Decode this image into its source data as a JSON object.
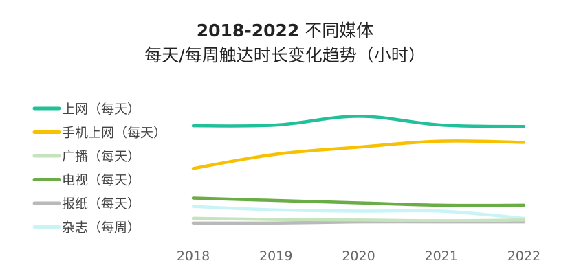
{
  "chart_data": {
    "type": "line",
    "title_bold": "2018-2022",
    "title_rest": " 不同媒体",
    "subtitle": "每天/每周触达时长变化趋势（小时）",
    "categories": [
      "2018",
      "2019",
      "2020",
      "2021",
      "2022"
    ],
    "ylim": [
      0,
      5.5
    ],
    "grid": false,
    "legend_position": "left",
    "series": [
      {
        "name": "上网（每天）",
        "color": "#22c09a",
        "values": [
          4.25,
          4.28,
          4.65,
          4.28,
          4.22
        ]
      },
      {
        "name": "手机上网（每天）",
        "color": "#f7c000",
        "values": [
          2.45,
          3.05,
          3.35,
          3.6,
          3.55
        ]
      },
      {
        "name": "广播（每天）",
        "color": "#c5e3bc",
        "values": [
          0.35,
          0.3,
          0.28,
          0.25,
          0.28
        ]
      },
      {
        "name": "电视（每天）",
        "color": "#6aac45",
        "values": [
          1.2,
          1.1,
          1.0,
          0.9,
          0.9
        ]
      },
      {
        "name": "报纸（每天）",
        "color": "#b9b9b9",
        "values": [
          0.15,
          0.15,
          0.2,
          0.2,
          0.2
        ]
      },
      {
        "name": "杂志（每周）",
        "color": "#c8f4f6",
        "values": [
          0.85,
          0.7,
          0.65,
          0.65,
          0.35
        ]
      }
    ]
  }
}
